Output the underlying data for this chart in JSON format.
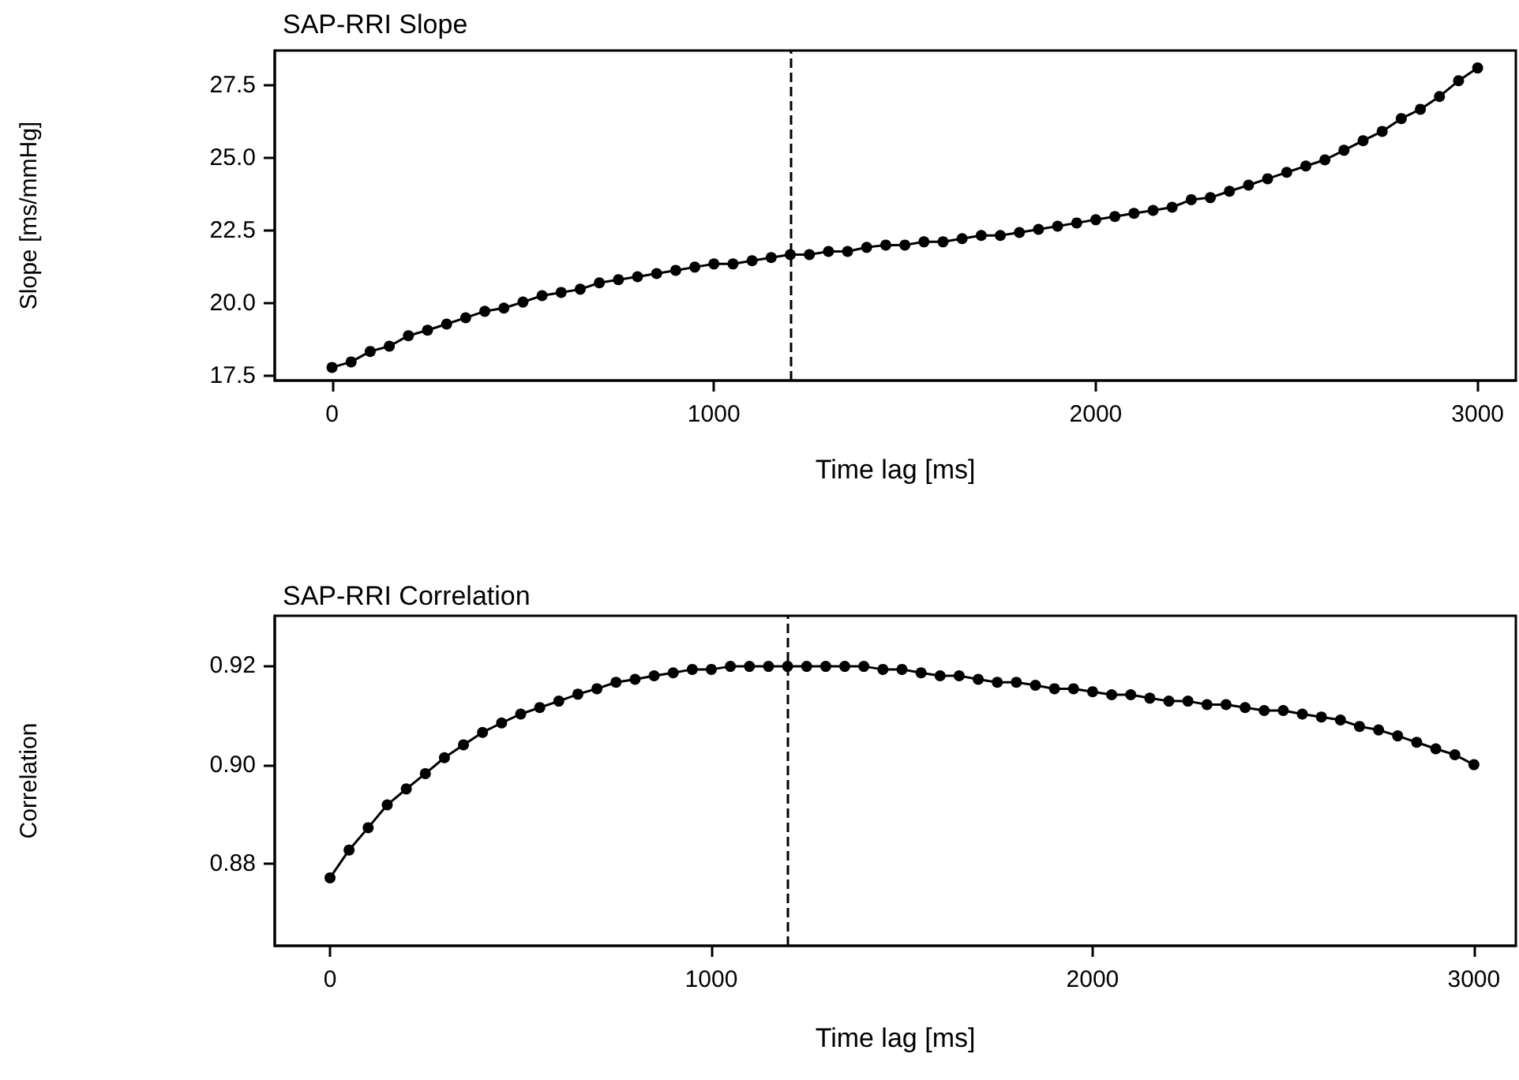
{
  "chart_data": [
    {
      "type": "line",
      "title": "SAP-RRI Slope",
      "xlabel": "Time lag [ms]",
      "ylabel": "Slope [ms/mmHg]",
      "x": [
        0,
        50,
        100,
        150,
        200,
        250,
        300,
        350,
        400,
        450,
        500,
        550,
        600,
        650,
        700,
        750,
        800,
        850,
        900,
        950,
        1000,
        1050,
        1100,
        1150,
        1200,
        1250,
        1300,
        1350,
        1400,
        1450,
        1500,
        1550,
        1600,
        1650,
        1700,
        1750,
        1800,
        1850,
        1900,
        1950,
        2000,
        2050,
        2100,
        2150,
        2200,
        2250,
        2300,
        2350,
        2400,
        2450,
        2500,
        2550,
        2600,
        2650,
        2700,
        2750,
        2800,
        2850,
        2900,
        2950,
        3000
      ],
      "series": [
        {
          "color": "#000000",
          "values": [
            17.8,
            17.99,
            18.35,
            18.53,
            18.89,
            19.08,
            19.29,
            19.51,
            19.73,
            19.84,
            20.05,
            20.27,
            20.38,
            20.49,
            20.71,
            20.82,
            20.92,
            21.03,
            21.14,
            21.25,
            21.36,
            21.36,
            21.47,
            21.58,
            21.68,
            21.68,
            21.79,
            21.79,
            21.93,
            22.01,
            22.01,
            22.12,
            22.12,
            22.23,
            22.34,
            22.34,
            22.44,
            22.55,
            22.66,
            22.77,
            22.88,
            22.99,
            23.1,
            23.2,
            23.31,
            23.57,
            23.64,
            23.86,
            24.07,
            24.29,
            24.51,
            24.73,
            24.94,
            25.27,
            25.6,
            25.92,
            26.36,
            26.68,
            27.12,
            27.66,
            28.1
          ]
        }
      ],
      "xlim": [
        -150,
        3100
      ],
      "xticks": [
        0,
        1000,
        2000,
        3000
      ],
      "ylim": [
        17.35,
        28.7
      ],
      "yticks": [
        17.5,
        {
          "value": 20,
          "label": "20.0"
        },
        22.5,
        {
          "value": 25,
          "label": "25.0"
        },
        27.5
      ],
      "ref_lines": [
        {
          "axis": "x",
          "value": 1200,
          "line_style": "dashed",
          "color": "#000000"
        }
      ],
      "grid": false,
      "marker": "circle",
      "line_style": "solid"
    },
    {
      "type": "line",
      "title": "SAP-RRI Correlation",
      "xlabel": "Time lag [ms]",
      "ylabel": "Correlation",
      "x": [
        0,
        50,
        100,
        150,
        200,
        250,
        300,
        350,
        400,
        450,
        500,
        550,
        600,
        650,
        700,
        750,
        800,
        850,
        900,
        950,
        1000,
        1050,
        1100,
        1150,
        1200,
        1250,
        1300,
        1350,
        1400,
        1450,
        1500,
        1550,
        1600,
        1650,
        1700,
        1750,
        1800,
        1850,
        1900,
        1950,
        2000,
        2050,
        2100,
        2150,
        2200,
        2250,
        2300,
        2350,
        2400,
        2450,
        2500,
        2550,
        2600,
        2650,
        2700,
        2750,
        2800,
        2850,
        2900,
        2950,
        3000
      ],
      "series": [
        {
          "color": "#000000",
          "values": [
            0.8772,
            0.8828,
            0.8873,
            0.8919,
            0.8951,
            0.8982,
            0.9014,
            0.904,
            0.9065,
            0.9084,
            0.9102,
            0.9115,
            0.9128,
            0.9142,
            0.9153,
            0.9166,
            0.9172,
            0.9179,
            0.9185,
            0.9192,
            0.9192,
            0.9198,
            0.9198,
            0.9198,
            0.9198,
            0.9198,
            0.9198,
            0.9198,
            0.9198,
            0.9192,
            0.9192,
            0.9185,
            0.9179,
            0.9179,
            0.9172,
            0.9166,
            0.9166,
            0.916,
            0.9153,
            0.9153,
            0.9147,
            0.9141,
            0.9141,
            0.9134,
            0.9128,
            0.9128,
            0.9121,
            0.9121,
            0.9115,
            0.9109,
            0.9109,
            0.9102,
            0.9096,
            0.909,
            0.9077,
            0.907,
            0.9058,
            0.9045,
            0.9032,
            0.902,
            0.9
          ]
        }
      ],
      "xlim": [
        -145,
        3110
      ],
      "xticks": [
        0,
        1000,
        2000,
        3000
      ],
      "ylim": [
        0.8635,
        0.93
      ],
      "yticks": [
        0.88,
        {
          "value": 0.9,
          "label": "0.90"
        },
        0.92
      ],
      "ref_lines": [
        {
          "axis": "x",
          "value": 1200,
          "line_style": "dashed",
          "color": "#000000"
        }
      ],
      "grid": false,
      "marker": "circle",
      "line_style": "solid"
    }
  ]
}
